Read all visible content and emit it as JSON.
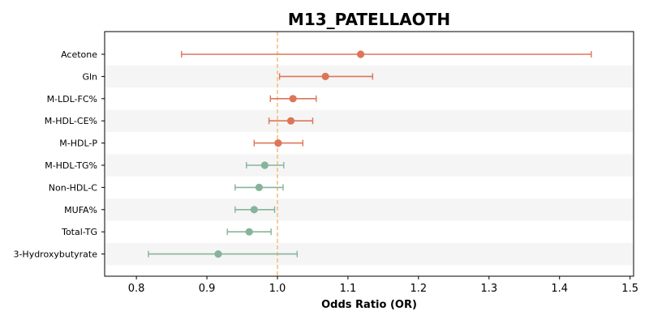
{
  "chart_data": {
    "type": "forest",
    "title": "M13_PATELLAOTH",
    "xlabel": "Odds Ratio (OR)",
    "xlim": [
      0.755,
      1.505
    ],
    "xticks": [
      0.8,
      0.9,
      1.0,
      1.1,
      1.2,
      1.3,
      1.4,
      1.5
    ],
    "xtick_labels": [
      "0.8",
      "0.9",
      "1.0",
      "1.1",
      "1.2",
      "1.3",
      "1.4",
      "1.5"
    ],
    "reference_line": 1.0,
    "colors": {
      "positive": "#dd7558",
      "negative": "#86b49b",
      "reference": "#f5c07e",
      "band": "#f5f5f5"
    },
    "rows": [
      {
        "label": "Acetone",
        "or": 1.118,
        "lower": 0.864,
        "upper": 1.445,
        "group": "positive"
      },
      {
        "label": "Gln",
        "or": 1.068,
        "lower": 1.003,
        "upper": 1.135,
        "group": "positive"
      },
      {
        "label": "M-LDL-FC%",
        "or": 1.022,
        "lower": 0.99,
        "upper": 1.055,
        "group": "positive"
      },
      {
        "label": "M-HDL-CE%",
        "or": 1.019,
        "lower": 0.988,
        "upper": 1.05,
        "group": "positive"
      },
      {
        "label": "M-HDL-P",
        "or": 1.001,
        "lower": 0.967,
        "upper": 1.036,
        "group": "positive"
      },
      {
        "label": "M-HDL-TG%",
        "or": 0.982,
        "lower": 0.956,
        "upper": 1.009,
        "group": "negative"
      },
      {
        "label": "Non-HDL-C",
        "or": 0.974,
        "lower": 0.94,
        "upper": 1.008,
        "group": "negative"
      },
      {
        "label": "MUFA%",
        "or": 0.967,
        "lower": 0.94,
        "upper": 0.996,
        "group": "negative"
      },
      {
        "label": "Total-TG",
        "or": 0.96,
        "lower": 0.929,
        "upper": 0.991,
        "group": "negative"
      },
      {
        "label": "3-Hydroxybutyrate",
        "or": 0.916,
        "lower": 0.817,
        "upper": 1.028,
        "group": "negative"
      }
    ]
  }
}
